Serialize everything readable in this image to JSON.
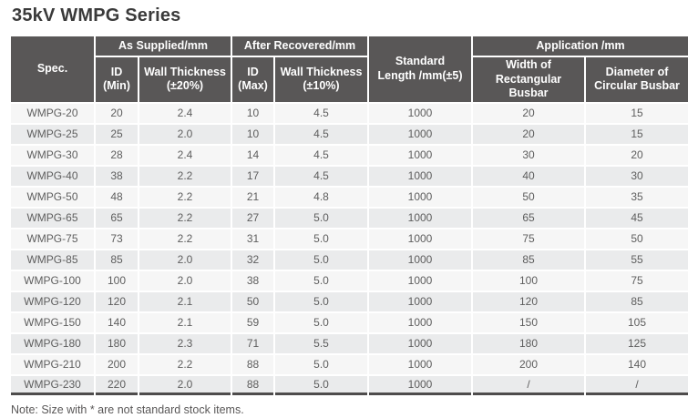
{
  "title": "35kV WMPG Series",
  "note": "Note: Size with * are not standard stock items.",
  "colors": {
    "header_bg": "#595757",
    "header_text": "#ffffff",
    "row_light": "#f6f6f6",
    "row_dark": "#eaebec",
    "body_text": "#5e5e5e",
    "title_text": "#3a3a3a",
    "bottom_border": "#4e4c4c",
    "gutter": "#ffffff"
  },
  "table": {
    "header": {
      "spec": "Spec.",
      "as_supplied": "As Supplied/mm",
      "after_recovered": "After Recovered/mm",
      "standard_length": "Standard\nLength /mm(±5)",
      "application": "Application /mm",
      "id_min": "ID\n(Min)",
      "wall_thickness_20": "Wall Thickness\n(±20%)",
      "id_max": "ID\n(Max)",
      "wall_thickness_10": "Wall Thickness\n(±10%)",
      "width_rectangular": "Width of\nRectangular Busbar",
      "diameter_circular": "Diameter of\nCircular Busbar"
    },
    "rows": [
      [
        "WMPG-20",
        "20",
        "2.4",
        "10",
        "4.5",
        "1000",
        "20",
        "15"
      ],
      [
        "WMPG-25",
        "25",
        "2.0",
        "10",
        "4.5",
        "1000",
        "20",
        "15"
      ],
      [
        "WMPG-30",
        "28",
        "2.4",
        "14",
        "4.5",
        "1000",
        "30",
        "20"
      ],
      [
        "WMPG-40",
        "38",
        "2.2",
        "17",
        "4.5",
        "1000",
        "40",
        "30"
      ],
      [
        "WMPG-50",
        "48",
        "2.2",
        "21",
        "4.8",
        "1000",
        "50",
        "35"
      ],
      [
        "WMPG-65",
        "65",
        "2.2",
        "27",
        "5.0",
        "1000",
        "65",
        "45"
      ],
      [
        "WMPG-75",
        "73",
        "2.2",
        "31",
        "5.0",
        "1000",
        "75",
        "50"
      ],
      [
        "WMPG-85",
        "85",
        "2.0",
        "32",
        "5.0",
        "1000",
        "85",
        "55"
      ],
      [
        "WMPG-100",
        "100",
        "2.0",
        "38",
        "5.0",
        "1000",
        "100",
        "75"
      ],
      [
        "WMPG-120",
        "120",
        "2.1",
        "50",
        "5.0",
        "1000",
        "120",
        "85"
      ],
      [
        "WMPG-150",
        "140",
        "2.1",
        "59",
        "5.0",
        "1000",
        "150",
        "105"
      ],
      [
        "WMPG-180",
        "180",
        "2.3",
        "71",
        "5.5",
        "1000",
        "180",
        "125"
      ],
      [
        "WMPG-210",
        "200",
        "2.2",
        "88",
        "5.0",
        "1000",
        "200",
        "140"
      ],
      [
        "WMPG-230",
        "220",
        "2.0",
        "88",
        "5.0",
        "1000",
        "/",
        "/"
      ]
    ]
  }
}
